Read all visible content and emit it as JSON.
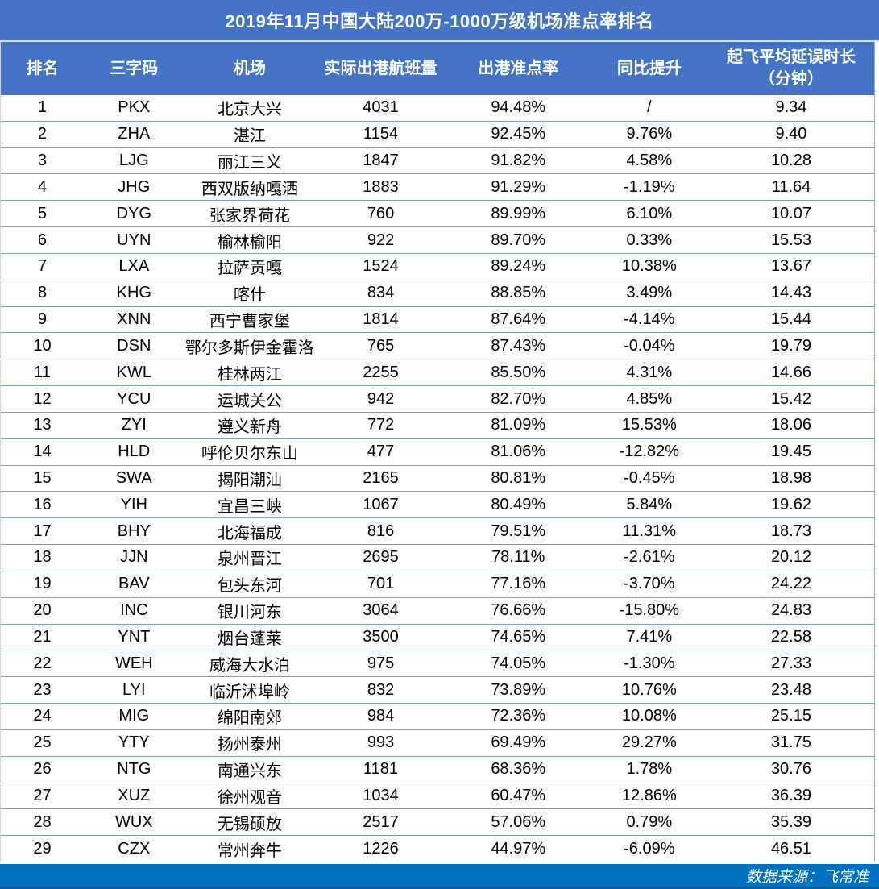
{
  "title": "2019年11月中国大陆200万-1000万级机场准点率排名",
  "footer": {
    "source": "数据来源：飞常准"
  },
  "colors": {
    "header_blue": "#4472C4",
    "footer_blue": "#0072C1",
    "row_separator": "#7E9DB9",
    "outer_border_pink": "#DA9694",
    "header_text": "#FFFFFF",
    "body_text": "#000000"
  },
  "chart_data": {
    "type": "table",
    "title": "2019年11月中国大陆200万-1000万级机场准点率排名",
    "columns": [
      "排名",
      "三字码",
      "机场",
      "实际出港航班量",
      "出港准点率",
      "同比提升",
      "起飞平均延误时长（分钟）"
    ],
    "column_header_last_line1": "起飞平均延误时长",
    "column_header_last_line2": "（分钟）",
    "rows": [
      [
        "1",
        "PKX",
        "北京大兴",
        "4031",
        "94.48%",
        "/",
        "9.34"
      ],
      [
        "2",
        "ZHA",
        "湛江",
        "1154",
        "92.45%",
        "9.76%",
        "9.40"
      ],
      [
        "3",
        "LJG",
        "丽江三义",
        "1847",
        "91.82%",
        "4.58%",
        "10.28"
      ],
      [
        "4",
        "JHG",
        "西双版纳嘎洒",
        "1883",
        "91.29%",
        "-1.19%",
        "11.64"
      ],
      [
        "5",
        "DYG",
        "张家界荷花",
        "760",
        "89.99%",
        "6.10%",
        "10.07"
      ],
      [
        "6",
        "UYN",
        "榆林榆阳",
        "922",
        "89.70%",
        "0.33%",
        "15.53"
      ],
      [
        "7",
        "LXA",
        "拉萨贡嘎",
        "1524",
        "89.24%",
        "10.38%",
        "13.67"
      ],
      [
        "8",
        "KHG",
        "喀什",
        "834",
        "88.85%",
        "3.49%",
        "14.43"
      ],
      [
        "9",
        "XNN",
        "西宁曹家堡",
        "1814",
        "87.64%",
        "-4.14%",
        "15.44"
      ],
      [
        "10",
        "DSN",
        "鄂尔多斯伊金霍洛",
        "765",
        "87.43%",
        "-0.04%",
        "19.79"
      ],
      [
        "11",
        "KWL",
        "桂林两江",
        "2255",
        "85.50%",
        "4.31%",
        "14.66"
      ],
      [
        "12",
        "YCU",
        "运城关公",
        "942",
        "82.70%",
        "4.85%",
        "15.42"
      ],
      [
        "13",
        "ZYI",
        "遵义新舟",
        "772",
        "81.09%",
        "15.53%",
        "18.06"
      ],
      [
        "14",
        "HLD",
        "呼伦贝尔东山",
        "477",
        "81.06%",
        "-12.82%",
        "19.45"
      ],
      [
        "15",
        "SWA",
        "揭阳潮汕",
        "2165",
        "80.81%",
        "-0.45%",
        "18.98"
      ],
      [
        "16",
        "YIH",
        "宜昌三峡",
        "1067",
        "80.49%",
        "5.84%",
        "19.62"
      ],
      [
        "17",
        "BHY",
        "北海福成",
        "816",
        "79.51%",
        "11.31%",
        "18.73"
      ],
      [
        "18",
        "JJN",
        "泉州晋江",
        "2695",
        "78.11%",
        "-2.61%",
        "20.12"
      ],
      [
        "19",
        "BAV",
        "包头东河",
        "701",
        "77.16%",
        "-3.70%",
        "24.22"
      ],
      [
        "20",
        "INC",
        "银川河东",
        "3064",
        "76.66%",
        "-15.80%",
        "24.83"
      ],
      [
        "21",
        "YNT",
        "烟台蓬莱",
        "3500",
        "74.65%",
        "7.41%",
        "22.58"
      ],
      [
        "22",
        "WEH",
        "威海大水泊",
        "975",
        "74.05%",
        "-1.30%",
        "27.33"
      ],
      [
        "23",
        "LYI",
        "临沂沭埠岭",
        "832",
        "73.89%",
        "10.76%",
        "23.48"
      ],
      [
        "24",
        "MIG",
        "绵阳南郊",
        "984",
        "72.36%",
        "10.08%",
        "25.15"
      ],
      [
        "25",
        "YTY",
        "扬州泰州",
        "993",
        "69.49%",
        "29.27%",
        "31.75"
      ],
      [
        "26",
        "NTG",
        "南通兴东",
        "1181",
        "68.36%",
        "1.78%",
        "30.76"
      ],
      [
        "27",
        "XUZ",
        "徐州观音",
        "1034",
        "60.47%",
        "12.86%",
        "36.39"
      ],
      [
        "28",
        "WUX",
        "无锡硕放",
        "2517",
        "57.06%",
        "0.79%",
        "35.39"
      ],
      [
        "29",
        "CZX",
        "常州奔牛",
        "1226",
        "44.97%",
        "-6.09%",
        "46.51"
      ]
    ]
  }
}
